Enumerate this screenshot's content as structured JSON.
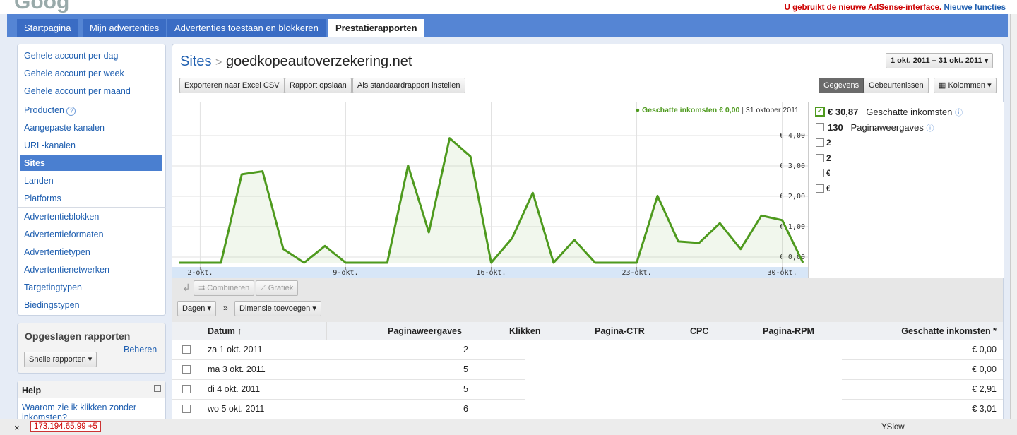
{
  "header": {
    "notice": "U gebruikt de nieuwe AdSense-interface.",
    "notice_link": "Nieuwe functies"
  },
  "tabs": [
    "Startpagina",
    "Mijn advertenties",
    "Advertenties toestaan en blokkeren",
    "Prestatierapporten"
  ],
  "sidebar": {
    "items": [
      "Gehele account per dag",
      "Gehele account per week",
      "Gehele account per maand",
      "Producten",
      "Aangepaste kanalen",
      "URL-kanalen",
      "Sites",
      "Landen",
      "Platforms",
      "Advertentieblokken",
      "Advertentieformaten",
      "Advertentietypen",
      "Advertentienetwerken",
      "Targetingtypen",
      "Biedingstypen"
    ],
    "saved_title": "Opgeslagen rapporten",
    "saved_manage": "Beheren",
    "saved_button": "Snelle rapporten",
    "help_title": "Help",
    "help_link": "Waarom zie ik klikken zonder inkomsten?"
  },
  "report": {
    "crumb": "Sites",
    "site": "goedkopeautoverzekering.net",
    "date_range": "1 okt. 2011 – 31 okt. 2011",
    "buttons": [
      "Exporteren naar Excel CSV",
      "Rapport opslaan",
      "Als standaardrapport instellen"
    ],
    "view_buttons": [
      "Gegevens",
      "Gebeurtenissen",
      "Kolommen"
    ],
    "metrics": [
      {
        "value": "€ 30,87",
        "label": "Geschatte inkomsten"
      },
      {
        "value": "130",
        "label": "Paginaweergaves"
      },
      {
        "value": "2"
      },
      {
        "value": "2"
      },
      {
        "value": "€"
      },
      {
        "value": "€"
      }
    ],
    "tools": [
      "Combineren",
      "Grafiek"
    ],
    "dim_button": "Dagen",
    "dim_sep": "»",
    "add_dimension": "Dimensie toevoegen"
  },
  "chart_data": {
    "type": "line",
    "categories": [
      null,
      "2-okt.",
      null,
      null,
      null,
      null,
      null,
      null,
      "9-okt.",
      null,
      null,
      null,
      null,
      null,
      null,
      "16-okt.",
      null,
      null,
      null,
      null,
      null,
      null,
      "23-okt.",
      null,
      null,
      null,
      null,
      null,
      null,
      "30-okt.",
      null
    ],
    "series": [
      {
        "name": "Geschatte inkomsten",
        "color": "#4e9a1e",
        "values": [
          0,
          0,
          0,
          2.91,
          3.01,
          0.45,
          0,
          0.55,
          0,
          0,
          0,
          3.2,
          1.0,
          4.1,
          3.5,
          0,
          0.8,
          2.3,
          0,
          0.75,
          0,
          0,
          0,
          2.2,
          0.7,
          0.65,
          1.3,
          0.45,
          1.55,
          1.4,
          0
        ]
      }
    ],
    "ylim": [
      0,
      5
    ],
    "yticks": [
      {
        "value": 0,
        "label": "€ 0,00"
      },
      {
        "value": 1,
        "label": "€ 1,00"
      },
      {
        "value": 2,
        "label": "€ 2,00"
      },
      {
        "value": 3,
        "label": "€ 3,00"
      },
      {
        "value": 4,
        "label": "€ 4,00"
      }
    ],
    "grid": true,
    "tooltip": {
      "series": "Geschatte inkomsten € 0,00",
      "date": "31 oktober 2011"
    }
  },
  "table": {
    "columns": [
      "Datum",
      "Paginaweergaves",
      "Klikken",
      "Pagina-CTR",
      "CPC",
      "Pagina-RPM",
      "Geschatte inkomsten *"
    ],
    "rows": [
      [
        "za 1 okt. 2011",
        "2",
        "€ 0,00"
      ],
      [
        "ma 3 okt. 2011",
        "5",
        "€ 0,00"
      ],
      [
        "di 4 okt. 2011",
        "5",
        "€ 2,91"
      ],
      [
        "wo 5 okt. 2011",
        "6",
        "€ 3,01"
      ]
    ]
  },
  "statusbar": {
    "ip": "173.194.65.99 +5",
    "yslow": "YSlow"
  }
}
